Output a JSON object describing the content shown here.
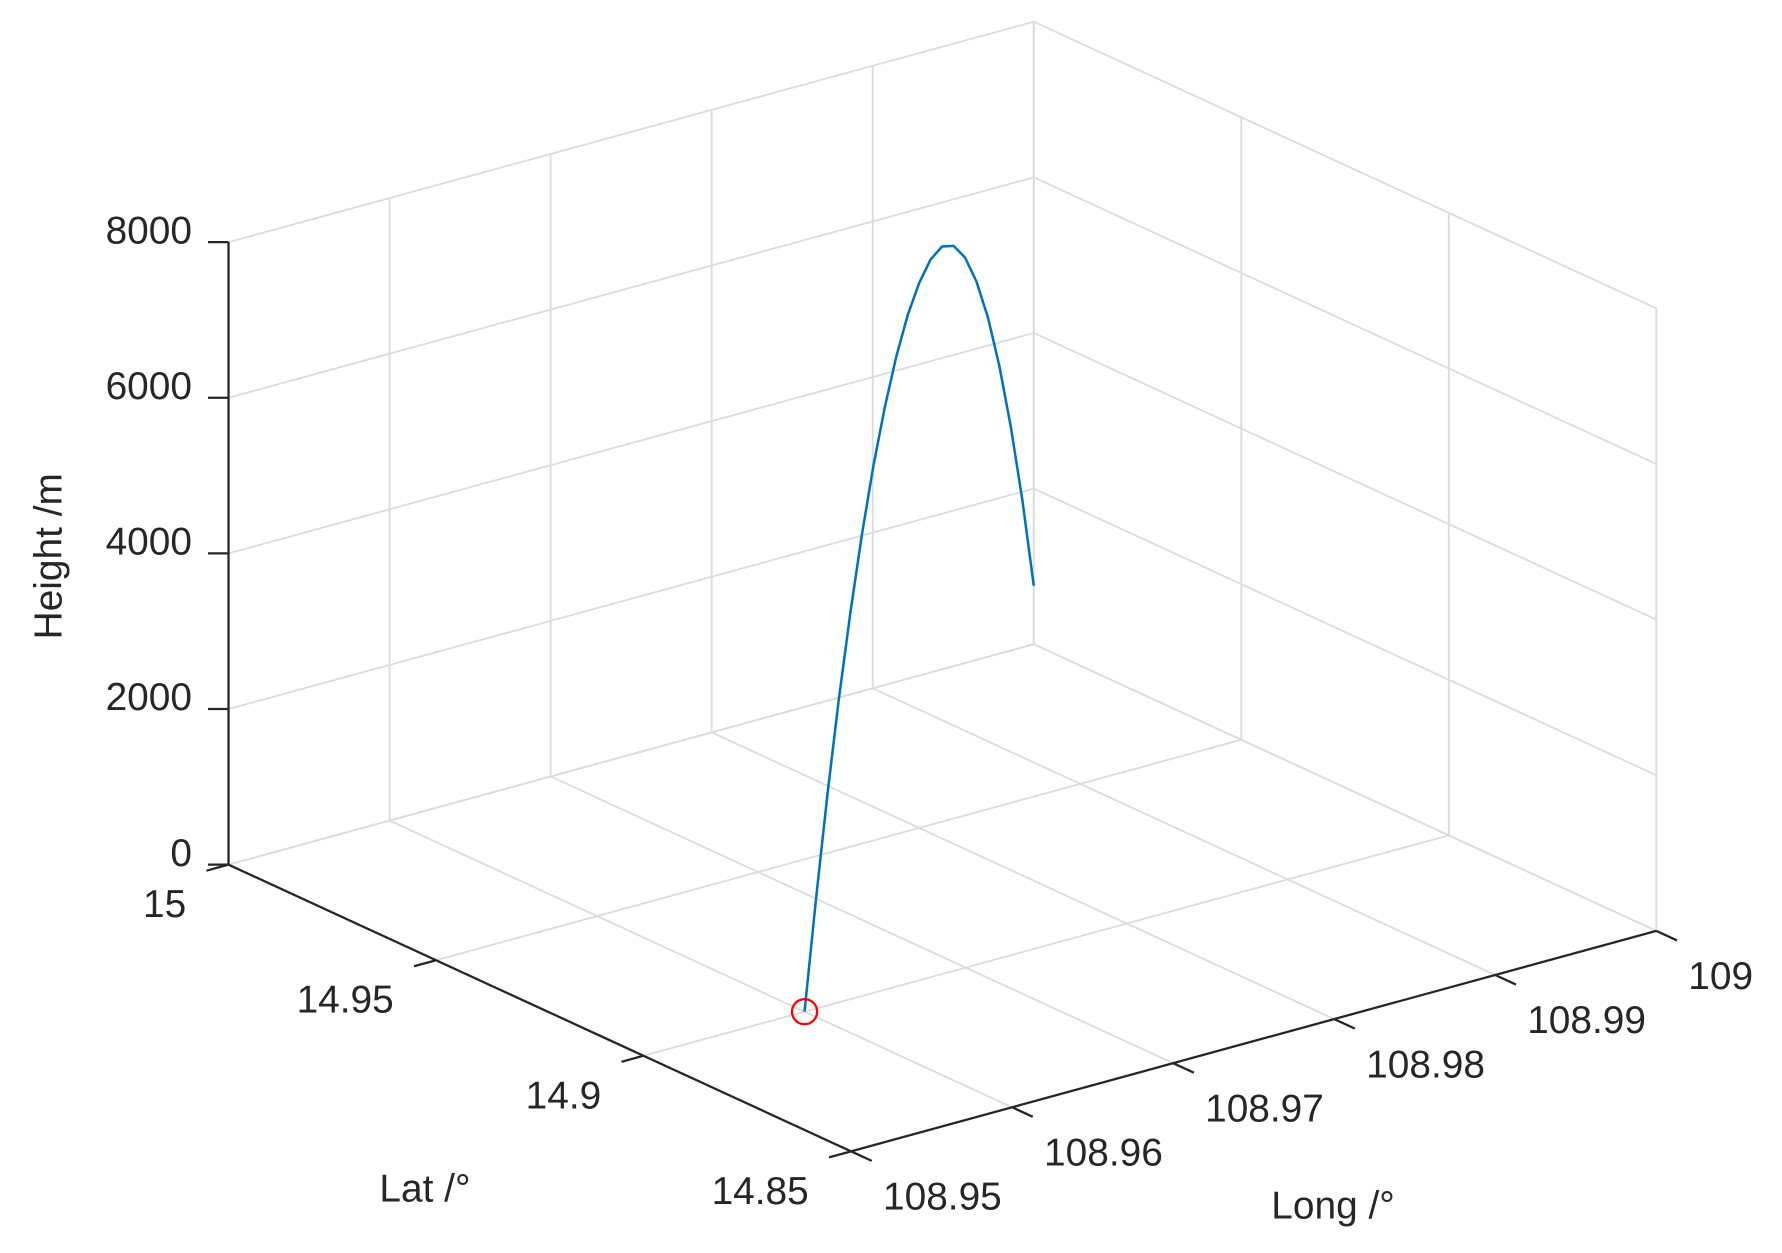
{
  "chart_data": {
    "type": "line3d",
    "xlabel": "Long /°",
    "ylabel": "Lat /°",
    "zlabel": "Height /m",
    "xlim": [
      108.95,
      109
    ],
    "ylim": [
      14.85,
      15
    ],
    "zlim": [
      0,
      8000
    ],
    "xticks": [
      108.95,
      108.96,
      108.97,
      108.98,
      108.99,
      109
    ],
    "yticks": [
      14.85,
      14.9,
      14.95,
      15
    ],
    "zticks": [
      0,
      2000,
      4000,
      6000,
      8000
    ],
    "grid": true,
    "series": [
      {
        "color": "#0072bd",
        "marker": "none",
        "x": [
          108.96,
          108.962,
          108.964,
          108.966,
          108.968,
          108.97,
          108.972,
          108.974,
          108.976,
          108.978,
          108.98,
          108.982,
          108.984,
          108.986,
          108.988,
          108.99,
          108.992,
          108.994,
          108.996,
          108.998,
          109
        ],
        "y": [
          14.9,
          14.905,
          14.91,
          14.915,
          14.92,
          14.925,
          14.93,
          14.935,
          14.94,
          14.945,
          14.95,
          14.955,
          14.96,
          14.965,
          14.97,
          14.975,
          14.98,
          14.985,
          14.99,
          14.995,
          15
        ],
        "z": [
          0,
          1220,
          2326,
          3315,
          4189,
          4948,
          5590,
          6117,
          6529,
          6825,
          7005,
          7070,
          7000,
          6772,
          6387,
          5843,
          5142,
          4282,
          3265,
          2090,
          750
        ]
      },
      {
        "color": "#ff0000",
        "marker": "circle",
        "x": [
          108.96
        ],
        "y": [
          14.9
        ],
        "z": [
          0
        ]
      }
    ]
  }
}
